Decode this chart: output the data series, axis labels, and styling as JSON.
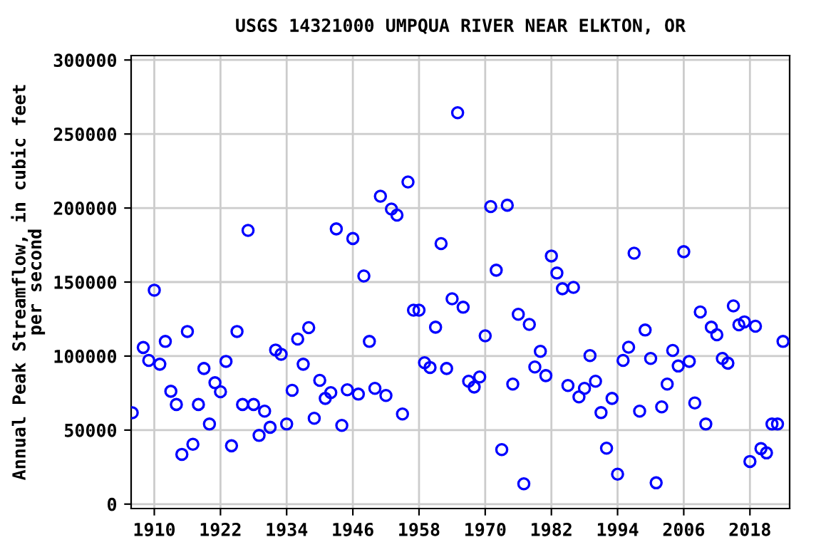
{
  "chart_data": {
    "type": "scatter",
    "title": "USGS 14321000 UMPQUA RIVER NEAR ELKTON, OR",
    "ylabel": "Annual Peak Streamflow, in cubic feet\nper second",
    "x": [
      1906,
      1908,
      1909,
      1910,
      1911,
      1912,
      1913,
      1914,
      1915,
      1916,
      1917,
      1918,
      1919,
      1920,
      1921,
      1922,
      1923,
      1924,
      1925,
      1926,
      1927,
      1928,
      1929,
      1930,
      1931,
      1932,
      1933,
      1934,
      1935,
      1936,
      1937,
      1938,
      1939,
      1940,
      1941,
      1942,
      1943,
      1944,
      1945,
      1946,
      1947,
      1948,
      1949,
      1950,
      1951,
      1952,
      1953,
      1954,
      1955,
      1956,
      1957,
      1958,
      1959,
      1960,
      1961,
      1962,
      1963,
      1964,
      1965,
      1966,
      1967,
      1968,
      1969,
      1970,
      1971,
      1972,
      1973,
      1974,
      1975,
      1976,
      1977,
      1978,
      1979,
      1980,
      1981,
      1982,
      1983,
      1984,
      1985,
      1986,
      1987,
      1988,
      1989,
      1990,
      1991,
      1992,
      1993,
      1994,
      1995,
      1996,
      1997,
      1998,
      1999,
      2000,
      2001,
      2002,
      2003,
      2004,
      2005,
      2006,
      2007,
      2008,
      2009,
      2010,
      2011,
      2012,
      2013,
      2014,
      2015,
      2016,
      2017,
      2018,
      2019,
      2020,
      2021,
      2022,
      2023,
      2024
    ],
    "series": [
      {
        "color": "#0000ff",
        "values": [
          61700,
          105800,
          97100,
          144500,
          94500,
          109900,
          76200,
          67300,
          33600,
          116600,
          40400,
          67300,
          91600,
          54100,
          82000,
          75900,
          96400,
          39400,
          116600,
          67300,
          184900,
          67300,
          46400,
          62800,
          51900,
          104100,
          101200,
          54100,
          76900,
          111500,
          94500,
          119200,
          58000,
          83600,
          71400,
          75300,
          185900,
          53200,
          77200,
          179400,
          74300,
          154100,
          109900,
          78200,
          208000,
          73400,
          199300,
          195200,
          60900,
          217600,
          131000,
          131000,
          95500,
          92300,
          119500,
          176000,
          91600,
          138700,
          264400,
          133000,
          83000,
          79100,
          85900,
          113700,
          201000,
          158000,
          36800,
          201900,
          81100,
          128200,
          13700,
          121400,
          92600,
          103200,
          86800,
          167600,
          156100,
          145500,
          80100,
          146400,
          72400,
          78200,
          100300,
          83000,
          61800,
          37800,
          71400,
          20200,
          97100,
          106000,
          169500,
          62800,
          117600,
          98400,
          14400,
          65700,
          81100,
          103800,
          93300,
          170500,
          96400,
          68300,
          129800,
          54100,
          119500,
          114400,
          98400,
          95200,
          133900,
          121100,
          123100,
          28800,
          120200,
          37500,
          34600,
          54100,
          54100,
          109900
        ]
      }
    ],
    "marker": "circle",
    "grid": true,
    "xlim": [
      1905.8,
      2025.2
    ],
    "xticks": [
      1910,
      1922,
      1934,
      1946,
      1958,
      1970,
      1982,
      1994,
      2006,
      2018
    ],
    "ylim": [
      -3000,
      303000
    ],
    "yticks": [
      0,
      50000,
      100000,
      150000,
      200000,
      250000,
      300000
    ]
  }
}
